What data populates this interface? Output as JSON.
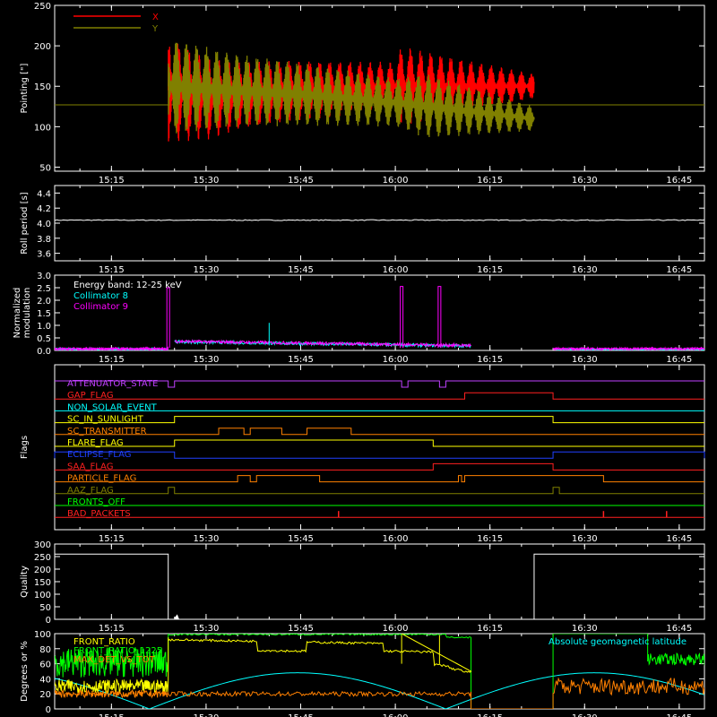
{
  "time_ticks": [
    "15:15",
    "15:30",
    "15:45",
    "16:00",
    "16:15",
    "16:30",
    "16:45"
  ],
  "chart_data": [
    {
      "type": "line",
      "ylabel": "Pointing [\"]",
      "yticks": [
        50,
        100,
        150,
        200,
        250
      ],
      "ylim": [
        45,
        250
      ],
      "xlim": [
        "15:06",
        "16:49"
      ],
      "legend": [
        {
          "name": "X",
          "color": "#ff0000"
        },
        {
          "name": "Y",
          "color": "#808000"
        }
      ],
      "baseline": 127,
      "series": [
        {
          "name": "X",
          "color": "#ff0000",
          "start": "15:24",
          "end": "16:22",
          "center": [
            [
              "15:24",
              145
            ],
            [
              "15:31",
              135
            ],
            [
              "15:45",
              145
            ],
            [
              "16:00",
              150
            ],
            [
              "16:22",
              150
            ]
          ],
          "amplitude": [
            [
              "15:24",
              65
            ],
            [
              "15:35",
              42
            ],
            [
              "16:00",
              30
            ],
            [
              "16:01",
              50
            ],
            [
              "16:22",
              15
            ]
          ]
        },
        {
          "name": "Y",
          "color": "#808000",
          "start": "15:24",
          "end": "16:22",
          "center": [
            [
              "15:24",
              150
            ],
            [
              "15:45",
              140
            ],
            [
              "16:00",
              130
            ],
            [
              "16:22",
              110
            ]
          ],
          "amplitude": [
            [
              "15:24",
              60
            ],
            [
              "15:35",
              45
            ],
            [
              "16:00",
              30
            ],
            [
              "16:05",
              40
            ],
            [
              "16:22",
              15
            ]
          ]
        }
      ]
    },
    {
      "type": "line",
      "ylabel": "Roll period [s]",
      "yticks": [
        "3.6",
        "3.8",
        "4.0",
        "4.2",
        "4.4"
      ],
      "ylim": [
        3.5,
        4.5
      ],
      "series": [
        {
          "name": "roll",
          "color": "#ffffff",
          "value": 4.04
        }
      ]
    },
    {
      "type": "line",
      "ylabel": [
        "Normalized",
        "modulation"
      ],
      "yticks": [
        "0.0",
        "0.5",
        "1.0",
        "1.5",
        "2.0",
        "2.5",
        "3.0"
      ],
      "ylim": [
        0,
        3
      ],
      "legend": [
        {
          "name": "Energy band: 12-25 keV",
          "color": "#ffffff"
        },
        {
          "name": "Collimator 8",
          "color": "#00ffff"
        },
        {
          "name": "Collimator 9",
          "color": "#ff00ff"
        }
      ],
      "series": [
        {
          "name": "Collimator 8",
          "color": "#00ffff",
          "spike_at": "15:40",
          "spike_value": 1.1
        },
        {
          "name": "Collimator 9",
          "color": "#ff00ff",
          "peaks": [
            [
              "15:24",
              2.5
            ],
            [
              "16:01",
              2.55
            ],
            [
              "16:07",
              2.55
            ]
          ]
        }
      ]
    },
    {
      "type": "flags",
      "ylabel": "Flags",
      "flags": [
        {
          "name": "ATTENUATOR_STATE",
          "color": "#c040ff",
          "on": [
            [
              "16:01",
              "16:02"
            ],
            [
              "16:07",
              "16:08"
            ]
          ],
          "invert": true,
          "blips": [
            [
              "15:24",
              "15:25"
            ]
          ]
        },
        {
          "name": "GAP_FLAG",
          "color": "#ff2020",
          "on": [
            [
              "16:11",
              "16:25"
            ]
          ]
        },
        {
          "name": "NON_SOLAR_EVENT",
          "color": "#00ffff",
          "on": []
        },
        {
          "name": "SC_IN_SUNLIGHT",
          "color": "#ffff00",
          "on": [
            [
              "15:25",
              "16:25"
            ]
          ]
        },
        {
          "name": "SC_TRANSMITTER",
          "color": "#ff8000",
          "on": [
            [
              "15:32",
              "15:36"
            ],
            [
              "15:37",
              "15:42"
            ],
            [
              "15:46",
              "15:53"
            ]
          ]
        },
        {
          "name": "FLARE_FLAG",
          "color": "#ffff00",
          "on": [
            [
              "15:25",
              "16:06"
            ]
          ]
        },
        {
          "name": "ECLIPSE_FLAG",
          "color": "#2040ff",
          "on": [
            [
              "15:06",
              "15:25"
            ],
            [
              "16:25",
              "16:49"
            ]
          ]
        },
        {
          "name": "SAA_FLAG",
          "color": "#ff2020",
          "on": [
            [
              "16:06",
              "16:25"
            ]
          ]
        },
        {
          "name": "PARTICLE_FLAG",
          "color": "#ff8000",
          "on": [
            [
              "15:35",
              "15:37"
            ],
            [
              "15:38",
              "15:48"
            ],
            [
              "16:10",
              "16:10.5"
            ],
            [
              "16:11",
              "16:33"
            ]
          ]
        },
        {
          "name": "AAZ_FLAG",
          "color": "#808000",
          "on": [
            [
              "15:24",
              "15:25"
            ],
            [
              "16:25",
              "16:26"
            ]
          ]
        },
        {
          "name": "FRONTS_OFF",
          "color": "#00ff00",
          "on": []
        },
        {
          "name": "BAD_PACKETS",
          "color": "#ff2020",
          "on": [],
          "spikes": [
            "15:51",
            "16:33",
            "16:43"
          ]
        }
      ]
    },
    {
      "type": "line",
      "ylabel": "Quality",
      "yticks": [
        0,
        50,
        100,
        150,
        200,
        250,
        300
      ],
      "ylim": [
        0,
        300
      ],
      "series": [
        {
          "name": "quality",
          "color": "#ffffff",
          "steps": [
            [
              "15:06",
              260
            ],
            [
              "15:24",
              260
            ],
            [
              "15:24",
              0
            ],
            [
              "16:22",
              0
            ],
            [
              "16:22",
              260
            ],
            [
              "16:49",
              260
            ]
          ]
        }
      ]
    },
    {
      "type": "line",
      "ylabel": "Degrees or %",
      "yticks": [
        0,
        20,
        40,
        60,
        80,
        100
      ],
      "ylim": [
        0,
        100
      ],
      "legend": [
        {
          "name": "FRONT_RATIO",
          "color": "#ffff00"
        },
        {
          "name": "FRONT_RATIO_1225",
          "color": "#00ff00"
        },
        {
          "name": "MAX_DET_VS_TOT",
          "color": "#ff8000"
        }
      ],
      "annotation": {
        "text": "Absolute geomagnetic latitude",
        "color": "#00ffff"
      },
      "series": [
        {
          "name": "FRONT_RATIO",
          "color": "#ffff00"
        },
        {
          "name": "FRONT_RATIO_1225",
          "color": "#00ff00"
        },
        {
          "name": "MAX_DET_VS_TOT",
          "color": "#ff8000"
        },
        {
          "name": "Absolute geomagnetic latitude",
          "color": "#00ffff"
        }
      ]
    }
  ]
}
